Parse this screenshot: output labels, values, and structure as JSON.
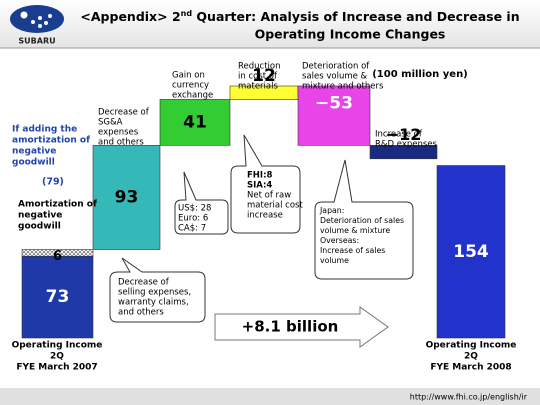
{
  "logo": "SUBARU",
  "title": {
    "line1_a": "<Appendix> 2",
    "line1_sup": "nd",
    "line1_b": " Quarter:  Analysis of Increase and Decrease in",
    "line2": "Operating Income Changes"
  },
  "footer_url": "http://www.fhi.co.jp/english/ir",
  "chart_data": {
    "type": "waterfall",
    "units": "(100 million yen)",
    "categories": [
      [
        "Operating Income",
        "2Q",
        "FYE March 2007"
      ],
      [
        "Decrease of",
        "SG&A",
        "expenses",
        "and others"
      ],
      [
        "Gain on",
        "currency",
        "exchange"
      ],
      [
        "Reduction",
        "in cost of",
        "materials"
      ],
      [
        "Deterioration of",
        "sales volume &",
        "mixture and others"
      ],
      [
        "Increase of",
        "R&D expenses"
      ],
      [
        "Operating Income",
        "2Q",
        "FYE March 2008"
      ]
    ],
    "values": [
      73,
      93,
      41,
      12,
      -53,
      -12,
      154
    ],
    "value_labels": [
      "73",
      "93",
      "41",
      "12",
      "−53",
      "−12",
      "154"
    ],
    "colors": [
      "#1f3aa8",
      "#35b8b8",
      "#33cc33",
      "#ffff33",
      "#e844e8",
      "#1a2a80",
      "#2233cc"
    ],
    "amortization": {
      "label": [
        "Amortization of",
        "negative",
        "goodwill"
      ],
      "value": 6,
      "adding_label": [
        "If adding the",
        "amortization of",
        "negative",
        "goodwill"
      ],
      "adding_total": {
        "value": 79,
        "label": "(79)"
      }
    },
    "annotations": {
      "sga": [
        "Decrease of",
        "selling expenses,",
        "warranty claims,",
        "and others"
      ],
      "currency": [
        "US$: 28",
        "Euro: 6",
        "CA$: 7"
      ],
      "materials": [
        "FHI:8",
        "SIA:4",
        "Net of raw",
        "material cost",
        "increase"
      ],
      "volume": [
        "Japan:",
        "Deterioration of sales",
        "volume & mixture",
        "Overseas:",
        "Increase of sales",
        "volume"
      ],
      "arrow": "+8.1 billion"
    }
  }
}
